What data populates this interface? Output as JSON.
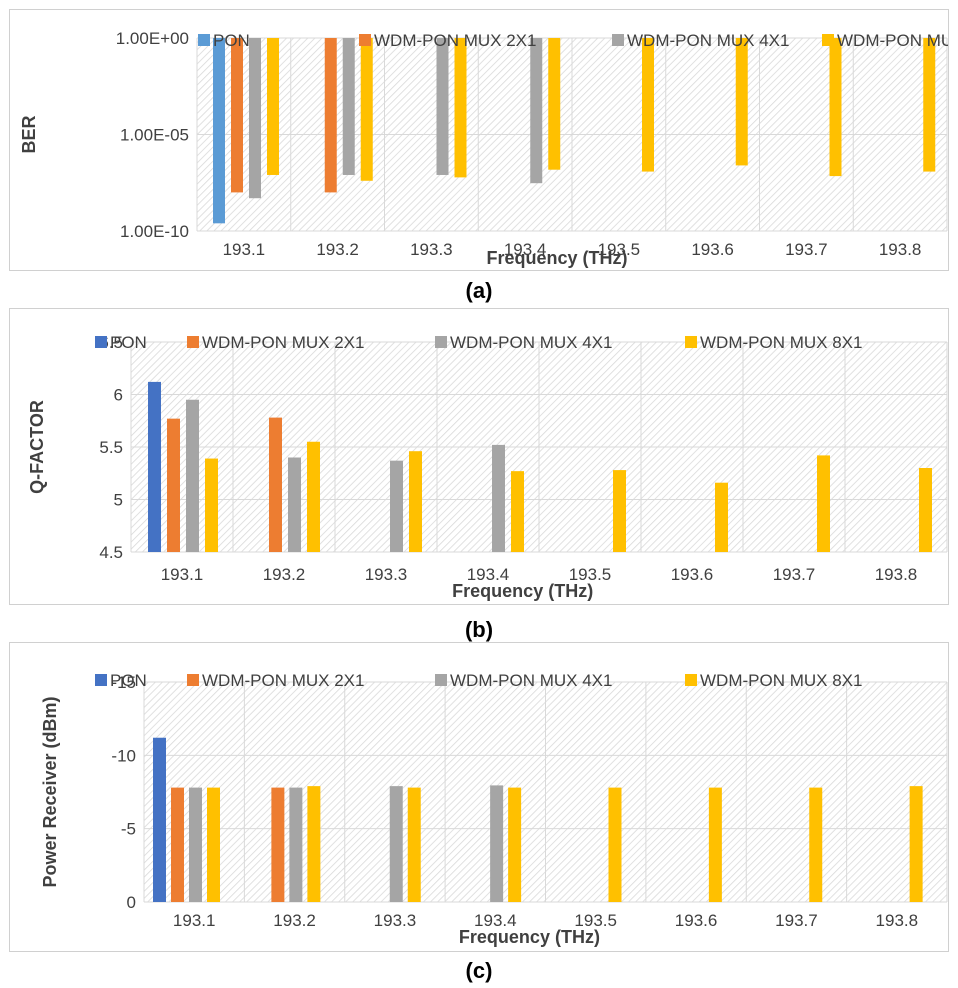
{
  "legend": [
    "PON",
    "WDM-PON MUX 2X1",
    "WDM-PON MUX 4X1",
    "WDM-PON MUX 8X1"
  ],
  "colors": {
    "pon": "#4472C4",
    "pon_light": "#5B9BD5",
    "mux2": "#ED7D31",
    "mux4": "#A5A5A5",
    "mux8": "#FFC000"
  },
  "charts": [
    {
      "caption": "(a)"
    },
    {
      "caption": "(b)"
    },
    {
      "caption": "(c)"
    }
  ],
  "chart_data": [
    {
      "type": "bar",
      "xlabel": "Frequency (THz)",
      "ylabel": "BER",
      "yscale": "log",
      "ylim": [
        1e-10,
        1
      ],
      "yticks": [
        "1.00E+00",
        "1.00E-05",
        "1.00E-10"
      ],
      "categories": [
        "193.1",
        "193.2",
        "193.3",
        "193.4",
        "193.5",
        "193.6",
        "193.7",
        "193.8"
      ],
      "series": [
        {
          "name": "PON",
          "values": [
            2.5e-10,
            null,
            null,
            null,
            null,
            null,
            null,
            null
          ]
        },
        {
          "name": "WDM-PON MUX 2X1",
          "values": [
            1e-08,
            1e-08,
            null,
            null,
            null,
            null,
            null,
            null
          ]
        },
        {
          "name": "WDM-PON MUX 4X1",
          "values": [
            5e-09,
            8e-08,
            8e-08,
            3e-08,
            null,
            null,
            null,
            null
          ]
        },
        {
          "name": "WDM-PON MUX 8X1",
          "values": [
            8e-08,
            4e-08,
            6e-08,
            1.5e-07,
            1.2e-07,
            2.5e-07,
            7e-08,
            1.2e-07
          ]
        }
      ]
    },
    {
      "type": "bar",
      "xlabel": "Frequency (THz)",
      "ylabel": "Q-FACTOR",
      "ylim": [
        4.5,
        6.5
      ],
      "yticks": [
        "4.5",
        "5",
        "5.5",
        "6",
        "6.5"
      ],
      "categories": [
        "193.1",
        "193.2",
        "193.3",
        "193.4",
        "193.5",
        "193.6",
        "193.7",
        "193.8"
      ],
      "series": [
        {
          "name": "PON",
          "values": [
            6.12,
            null,
            null,
            null,
            null,
            null,
            null,
            null
          ]
        },
        {
          "name": "WDM-PON MUX 2X1",
          "values": [
            5.77,
            5.78,
            null,
            null,
            null,
            null,
            null,
            null
          ]
        },
        {
          "name": "WDM-PON MUX 4X1",
          "values": [
            5.95,
            5.4,
            5.37,
            5.52,
            null,
            null,
            null,
            null
          ]
        },
        {
          "name": "WDM-PON MUX 8X1",
          "values": [
            5.39,
            5.55,
            5.46,
            5.27,
            5.28,
            5.16,
            5.42,
            5.3
          ]
        }
      ]
    },
    {
      "type": "bar",
      "xlabel": "Frequency (THz)",
      "ylabel": "Power Receiver (dBm)",
      "ylim": [
        0,
        -15
      ],
      "yticks": [
        "0",
        "-5",
        "-10",
        "-15"
      ],
      "categories": [
        "193.1",
        "193.2",
        "193.3",
        "193.4",
        "193.5",
        "193.6",
        "193.7",
        "193.8"
      ],
      "series": [
        {
          "name": "PON",
          "values": [
            -11.2,
            null,
            null,
            null,
            null,
            null,
            null,
            null
          ]
        },
        {
          "name": "WDM-PON MUX 2X1",
          "values": [
            -7.8,
            -7.8,
            null,
            null,
            null,
            null,
            null,
            null
          ]
        },
        {
          "name": "WDM-PON MUX 4X1",
          "values": [
            -7.8,
            -7.8,
            -7.9,
            -7.95,
            null,
            null,
            null,
            null
          ]
        },
        {
          "name": "WDM-PON MUX 8X1",
          "values": [
            -7.8,
            -7.9,
            -7.8,
            -7.8,
            -7.8,
            -7.8,
            -7.8,
            -7.9
          ]
        }
      ]
    }
  ]
}
